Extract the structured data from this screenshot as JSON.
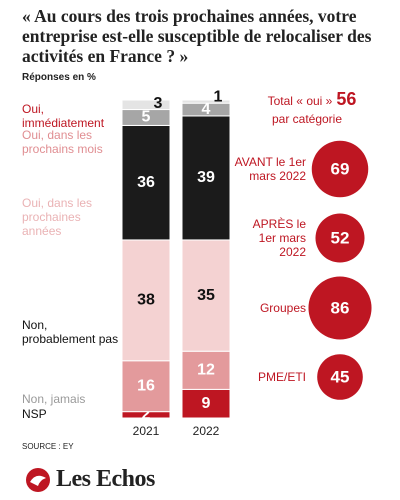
{
  "chart_data": {
    "type": "stacked_bar",
    "title": "« Au cours des trois prochaines années, votre entreprise est-elle susceptible de relocaliser des activités en France ? »",
    "subtitle": "Réponses en %",
    "categories": [
      "2021",
      "2022"
    ],
    "ylim": [
      0,
      100
    ],
    "series": [
      {
        "name": "Oui, immédiatement",
        "color": "#be1622",
        "legend_color": "#be1622",
        "label_color": "#ffffff",
        "values": [
          2,
          9
        ]
      },
      {
        "name": "Oui, dans les prochains mois",
        "color": "#e39a9c",
        "legend_color": "#e08e92",
        "label_color": "#ffffff",
        "values": [
          16,
          12
        ]
      },
      {
        "name": "Oui, dans les prochaines années",
        "color": "#f4d2d2",
        "legend_color": "#eab3b5",
        "label_color": "#111111",
        "values": [
          38,
          35
        ]
      },
      {
        "name": "Non, probablement pas",
        "color": "#1b1b1b",
        "legend_color": "#111111",
        "label_color": "#ffffff",
        "values": [
          36,
          39
        ]
      },
      {
        "name": "Non, jamais",
        "color": "#a6a6a6",
        "legend_color": "#9a9a9a",
        "label_color": "#ffffff",
        "values": [
          5,
          4
        ]
      },
      {
        "name": "NSP",
        "color": "#e4e4e4",
        "legend_color": "#111111",
        "label_color": "#111111",
        "values": [
          3,
          1
        ]
      }
    ],
    "totals": {
      "title": "Total « oui »",
      "total": 56,
      "subtitle": "par catégorie",
      "color": "#be1622",
      "items": [
        {
          "label": "AVANT le 1er mars 2022",
          "value": 69
        },
        {
          "label": "APRÈS le 1er mars 2022",
          "value": 52
        },
        {
          "label": "Groupes",
          "value": 86
        },
        {
          "label": "PME/ETI",
          "value": 45
        }
      ]
    },
    "source": "SOURCE : EY"
  },
  "brand": "Les Echos"
}
